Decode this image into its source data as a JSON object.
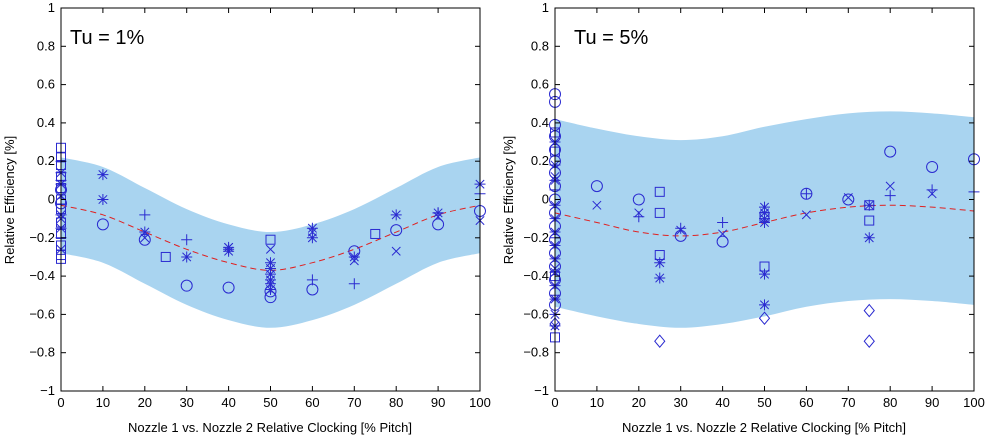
{
  "colors": {
    "band": "#a9d4f0",
    "marker": "#2a2ad0",
    "mean": "#e02020",
    "axis": "#000000"
  },
  "chart_data": [
    {
      "type": "scatter",
      "annotation": "Tu = 1%",
      "xlabel": "Nozzle 1 vs. Nozzle 2 Relative Clocking [% Pitch]",
      "ylabel": "Relative Efficiency [%]",
      "xlim": [
        0,
        100
      ],
      "ylim": [
        -1,
        1
      ],
      "xticks": [
        "0",
        "10",
        "20",
        "30",
        "40",
        "50",
        "60",
        "70",
        "80",
        "90",
        "100"
      ],
      "yticks": [
        "1",
        "0.8",
        "0.6",
        "0.4",
        "0.2",
        "0",
        "−0.2",
        "−0.4",
        "−0.6",
        "−0.8",
        "−1"
      ],
      "mean_curve": {
        "style": "dashed",
        "x": [
          0,
          10,
          20,
          30,
          40,
          50,
          60,
          70,
          80,
          90,
          100
        ],
        "y": [
          -0.03,
          -0.08,
          -0.17,
          -0.26,
          -0.33,
          -0.37,
          -0.33,
          -0.26,
          -0.17,
          -0.08,
          -0.03
        ]
      },
      "band": {
        "x": [
          0,
          10,
          20,
          30,
          40,
          50,
          60,
          70,
          80,
          90,
          100
        ],
        "upper": [
          0.22,
          0.17,
          0.06,
          -0.05,
          -0.13,
          -0.17,
          -0.13,
          -0.05,
          0.06,
          0.17,
          0.22
        ],
        "lower": [
          -0.28,
          -0.33,
          -0.44,
          -0.55,
          -0.63,
          -0.67,
          -0.63,
          -0.55,
          -0.44,
          -0.33,
          -0.28
        ]
      },
      "series": [
        {
          "marker": "circle",
          "points": [
            [
              10,
              -0.13
            ],
            [
              20,
              -0.21
            ],
            [
              30,
              -0.45
            ],
            [
              40,
              -0.46
            ],
            [
              50,
              -0.51
            ],
            [
              50,
              -0.48
            ],
            [
              60,
              -0.47
            ],
            [
              70,
              -0.27
            ],
            [
              80,
              -0.16
            ],
            [
              90,
              -0.13
            ],
            [
              100,
              -0.06
            ],
            [
              0,
              -0.02
            ],
            [
              0,
              0.05
            ]
          ]
        },
        {
          "marker": "square",
          "points": [
            [
              0,
              0.27
            ],
            [
              0,
              0.22
            ],
            [
              0,
              0.18
            ],
            [
              0,
              0.12
            ],
            [
              0,
              0.06
            ],
            [
              0,
              0
            ],
            [
              0,
              -0.05
            ],
            [
              0,
              -0.12
            ],
            [
              0,
              -0.18
            ],
            [
              0,
              -0.24
            ],
            [
              0,
              -0.29
            ],
            [
              0,
              -0.31
            ],
            [
              25,
              -0.3
            ],
            [
              50,
              -0.21
            ],
            [
              75,
              -0.18
            ]
          ]
        },
        {
          "marker": "star",
          "points": [
            [
              10,
              0.13
            ],
            [
              10,
              0.0
            ],
            [
              20,
              -0.17
            ],
            [
              30,
              -0.3
            ],
            [
              40,
              -0.25
            ],
            [
              40,
              -0.27
            ],
            [
              50,
              -0.33
            ],
            [
              50,
              -0.36
            ],
            [
              50,
              -0.39
            ],
            [
              50,
              -0.42
            ],
            [
              50,
              -0.44
            ],
            [
              50,
              -0.47
            ],
            [
              60,
              -0.15
            ],
            [
              60,
              -0.2
            ],
            [
              70,
              -0.3
            ],
            [
              80,
              -0.08
            ],
            [
              90,
              -0.07
            ],
            [
              100,
              0.08
            ],
            [
              0,
              0.14
            ],
            [
              0,
              0.08
            ],
            [
              0,
              -0.08
            ],
            [
              0,
              -0.15
            ]
          ]
        },
        {
          "marker": "plus",
          "points": [
            [
              20,
              -0.08
            ],
            [
              30,
              -0.21
            ],
            [
              40,
              -0.26
            ],
            [
              60,
              -0.42
            ],
            [
              70,
              -0.44
            ],
            [
              90,
              -0.07
            ],
            [
              100,
              0.03
            ],
            [
              0,
              0.2
            ],
            [
              0,
              0.1
            ],
            [
              0,
              -0.2
            ]
          ]
        },
        {
          "marker": "cross",
          "points": [
            [
              20,
              -0.2
            ],
            [
              40,
              -0.25
            ],
            [
              50,
              -0.26
            ],
            [
              60,
              -0.17
            ],
            [
              70,
              -0.32
            ],
            [
              80,
              -0.27
            ],
            [
              90,
              -0.09
            ],
            [
              100,
              -0.11
            ],
            [
              0,
              0.02
            ],
            [
              0,
              -0.1
            ],
            [
              0,
              -0.26
            ]
          ]
        }
      ]
    },
    {
      "type": "scatter",
      "annotation": "Tu = 5%",
      "xlabel": "Nozzle 1 vs. Nozzle 2 Relative Clocking [% Pitch]",
      "ylabel": "Relative Efficiency [%]",
      "xlim": [
        0,
        100
      ],
      "ylim": [
        -1,
        1
      ],
      "xticks": [
        "0",
        "10",
        "20",
        "30",
        "40",
        "50",
        "60",
        "70",
        "80",
        "90",
        "100"
      ],
      "yticks": [
        "1",
        "0.8",
        "0.6",
        "0.4",
        "0.2",
        "0",
        "−0.2",
        "−0.4",
        "−0.6",
        "−0.8",
        "−1"
      ],
      "mean_curve": {
        "style": "dashed",
        "x": [
          0,
          10,
          20,
          30,
          40,
          50,
          60,
          70,
          80,
          90,
          100
        ],
        "y": [
          -0.07,
          -0.12,
          -0.17,
          -0.19,
          -0.17,
          -0.12,
          -0.07,
          -0.04,
          -0.03,
          -0.04,
          -0.06
        ]
      },
      "band": {
        "x": [
          0,
          10,
          20,
          30,
          40,
          50,
          60,
          70,
          80,
          90,
          100
        ],
        "upper": [
          0.42,
          0.37,
          0.33,
          0.31,
          0.33,
          0.38,
          0.42,
          0.45,
          0.46,
          0.45,
          0.43
        ],
        "lower": [
          -0.56,
          -0.61,
          -0.65,
          -0.67,
          -0.65,
          -0.61,
          -0.56,
          -0.53,
          -0.52,
          -0.53,
          -0.55
        ]
      },
      "series": [
        {
          "marker": "circle",
          "points": [
            [
              0,
              0.55
            ],
            [
              0,
              0.51
            ],
            [
              0,
              0.39
            ],
            [
              0,
              0.33
            ],
            [
              0,
              0.26
            ],
            [
              0,
              0.2
            ],
            [
              0,
              0.14
            ],
            [
              0,
              0.07
            ],
            [
              0,
              0.0
            ],
            [
              0,
              -0.07
            ],
            [
              0,
              -0.14
            ],
            [
              0,
              -0.21
            ],
            [
              0,
              -0.28
            ],
            [
              0,
              -0.35
            ],
            [
              0,
              -0.42
            ],
            [
              0,
              -0.49
            ],
            [
              0,
              -0.55
            ],
            [
              10,
              0.07
            ],
            [
              20,
              0.0
            ],
            [
              30,
              -0.19
            ],
            [
              40,
              -0.22
            ],
            [
              60,
              0.03
            ],
            [
              70,
              0.0
            ],
            [
              80,
              0.25
            ],
            [
              90,
              0.17
            ],
            [
              100,
              0.21
            ]
          ]
        },
        {
          "marker": "square",
          "points": [
            [
              0,
              0.35
            ],
            [
              0,
              0.25
            ],
            [
              0,
              -0.4
            ],
            [
              0,
              -0.72
            ],
            [
              25,
              0.04
            ],
            [
              25,
              -0.07
            ],
            [
              25,
              -0.29
            ],
            [
              50,
              -0.35
            ],
            [
              50,
              -0.09
            ],
            [
              75,
              -0.03
            ],
            [
              75,
              -0.11
            ]
          ]
        },
        {
          "marker": "star",
          "points": [
            [
              0,
              0.3
            ],
            [
              0,
              0.18
            ],
            [
              0,
              0.1
            ],
            [
              0,
              -0.03
            ],
            [
              0,
              -0.1
            ],
            [
              0,
              -0.17
            ],
            [
              0,
              -0.24
            ],
            [
              0,
              -0.31
            ],
            [
              0,
              -0.38
            ],
            [
              0,
              -0.45
            ],
            [
              0,
              -0.52
            ],
            [
              0,
              -0.6
            ],
            [
              0,
              -0.66
            ],
            [
              25,
              -0.33
            ],
            [
              25,
              -0.41
            ],
            [
              50,
              -0.04
            ],
            [
              50,
              -0.07
            ],
            [
              50,
              -0.1
            ],
            [
              50,
              -0.12
            ],
            [
              50,
              -0.39
            ],
            [
              50,
              -0.55
            ],
            [
              75,
              -0.2
            ],
            [
              75,
              -0.03
            ]
          ]
        },
        {
          "marker": "plus",
          "points": [
            [
              0,
              0.05
            ],
            [
              0,
              -0.2
            ],
            [
              0,
              -0.5
            ],
            [
              20,
              -0.09
            ],
            [
              30,
              -0.15
            ],
            [
              40,
              -0.12
            ],
            [
              60,
              0.03
            ],
            [
              80,
              0.02
            ],
            [
              90,
              0.05
            ],
            [
              100,
              0.04
            ]
          ]
        },
        {
          "marker": "cross",
          "points": [
            [
              0,
              0.12
            ],
            [
              0,
              -0.36
            ],
            [
              10,
              -0.03
            ],
            [
              20,
              -0.07
            ],
            [
              30,
              -0.16
            ],
            [
              40,
              -0.18
            ],
            [
              60,
              -0.08
            ],
            [
              70,
              0.01
            ],
            [
              80,
              0.07
            ],
            [
              90,
              0.03
            ]
          ]
        },
        {
          "marker": "diamond",
          "points": [
            [
              0,
              -0.65
            ],
            [
              25,
              -0.74
            ],
            [
              50,
              -0.62
            ],
            [
              75,
              -0.58
            ],
            [
              75,
              -0.74
            ]
          ]
        }
      ]
    }
  ]
}
